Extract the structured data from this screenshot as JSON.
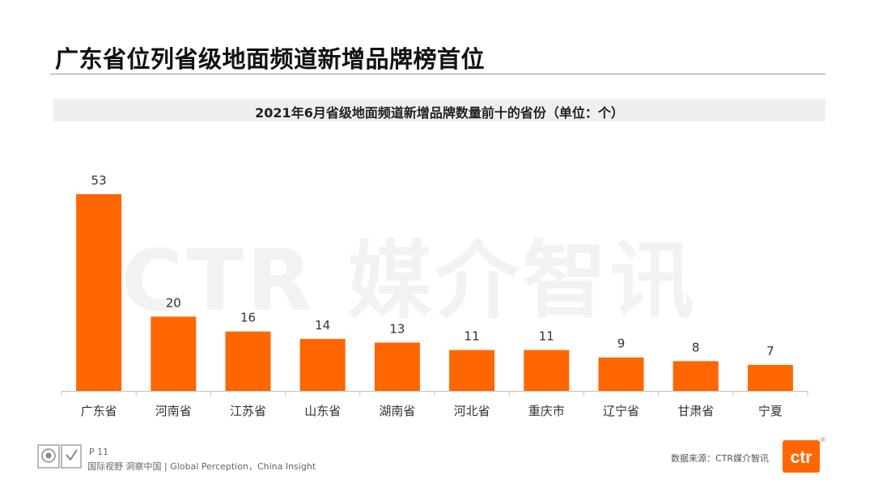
{
  "page": {
    "title": "广东省位列省级地面频道新增品牌榜首位",
    "watermark": "CTR 媒介智讯",
    "page_number": "P 11",
    "slogan": "国际视野  洞察中国 |  Global Perception，China Insight",
    "source": "数据来源：CTR媒介智讯",
    "logo_text": "ctr",
    "logo_mark": "®",
    "accent_color": "#ff6600"
  },
  "chart_data": {
    "type": "bar",
    "title": "2021年6月省级地面频道新增品牌数量前十的省份（单位：个）",
    "categories": [
      "广东省",
      "河南省",
      "江苏省",
      "山东省",
      "湖南省",
      "河北省",
      "重庆市",
      "辽宁省",
      "甘肃省",
      "宁夏"
    ],
    "values": [
      53,
      20,
      16,
      14,
      13,
      11,
      11,
      9,
      8,
      7
    ],
    "data_labels": [
      "53",
      "20",
      "16",
      "14",
      "13",
      "11",
      "11",
      "9",
      "8",
      "7"
    ],
    "xlabel": "",
    "ylabel": "",
    "ylim": [
      0,
      53
    ],
    "grid": false,
    "bar_color": "#ff6600"
  }
}
